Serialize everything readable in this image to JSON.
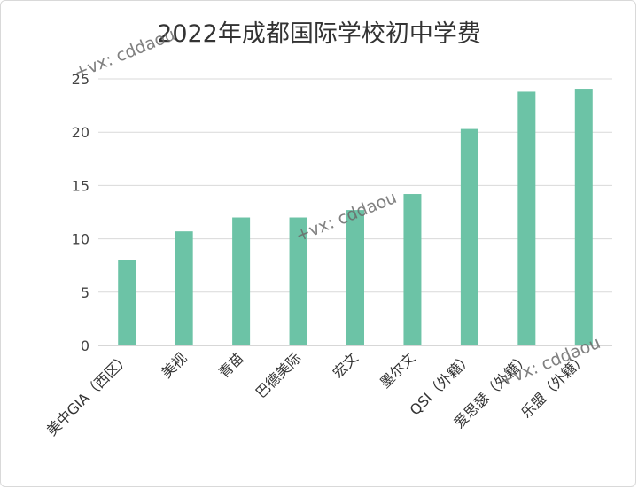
{
  "chart_data": {
    "type": "bar",
    "title": "2022年成都国际学校初中学费",
    "xlabel": "",
    "ylabel": "",
    "ylim": [
      0,
      25
    ],
    "yticks": [
      0,
      5,
      10,
      15,
      20,
      25
    ],
    "grid": true,
    "legend": "none",
    "bar_color": "#6cc3a6",
    "categories": [
      "美中GIA（西区）",
      "美视",
      "青苗",
      "巴德美际",
      "宏文",
      "墨尔文",
      "QSI（外籍）",
      "爱思瑟（外籍）",
      "乐盟（外籍）"
    ],
    "values": [
      8.0,
      10.7,
      12.0,
      12.0,
      12.7,
      14.2,
      20.3,
      23.8,
      24.0
    ]
  },
  "watermarks": [
    "+vx: cddaou",
    "+vx: cddaou",
    "+vx: cddaou"
  ]
}
